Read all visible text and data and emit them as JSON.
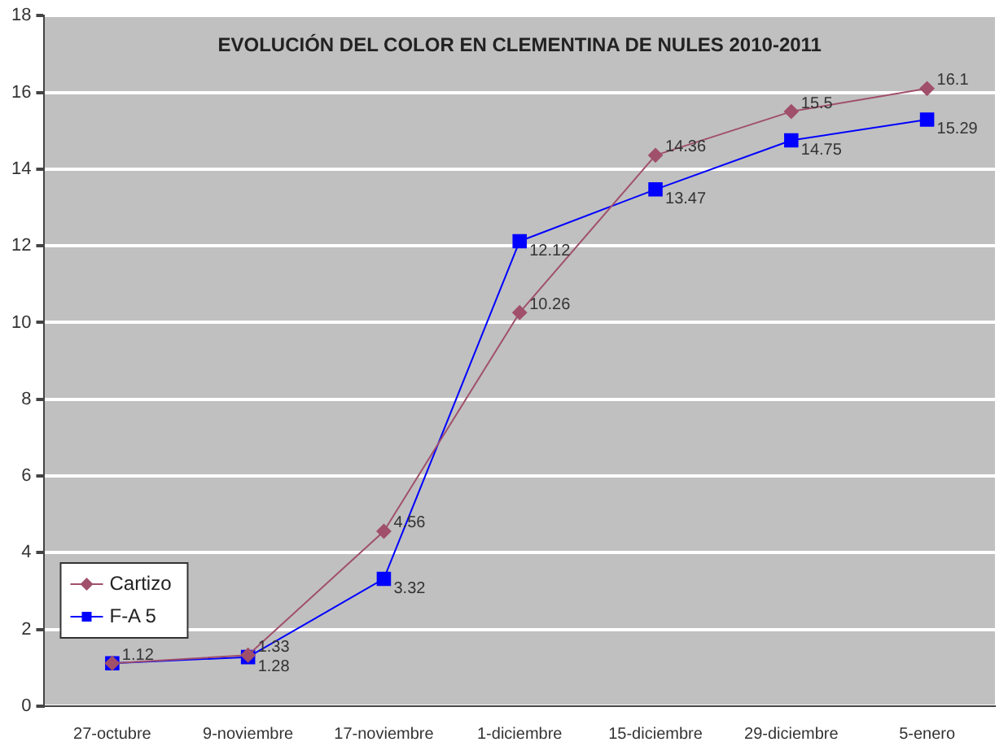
{
  "chart_data": {
    "type": "line",
    "title": "EVOLUCIÓN DEL COLOR EN CLEMENTINA DE NULES 2010-2011",
    "categories": [
      "27-octubre",
      "9-noviembre",
      "17-noviembre",
      "1-diciembre",
      "15-diciembre",
      "29-diciembre",
      "5-enero"
    ],
    "series": [
      {
        "name": "Cartizo",
        "color": "#a0506a",
        "marker": "diamond",
        "values": [
          1.12,
          1.33,
          4.56,
          10.26,
          14.36,
          15.5,
          16.1
        ],
        "value_labels": [
          "1.12",
          "1.33",
          "4.56",
          "10.26",
          "14.36",
          "15.5",
          "16.1"
        ]
      },
      {
        "name": "F-A 5",
        "color": "#0000ff",
        "marker": "square",
        "values": [
          1.12,
          1.28,
          3.32,
          12.12,
          13.47,
          14.75,
          15.29
        ],
        "value_labels": [
          null,
          "1.28",
          "3.32",
          "12.12",
          "13.47",
          "14.75",
          "15.29"
        ]
      }
    ],
    "ylim": [
      0,
      18
    ],
    "yticks": [
      0,
      2,
      4,
      6,
      8,
      10,
      12,
      14,
      16,
      18
    ],
    "grid": "y",
    "legend": "bottom left"
  }
}
